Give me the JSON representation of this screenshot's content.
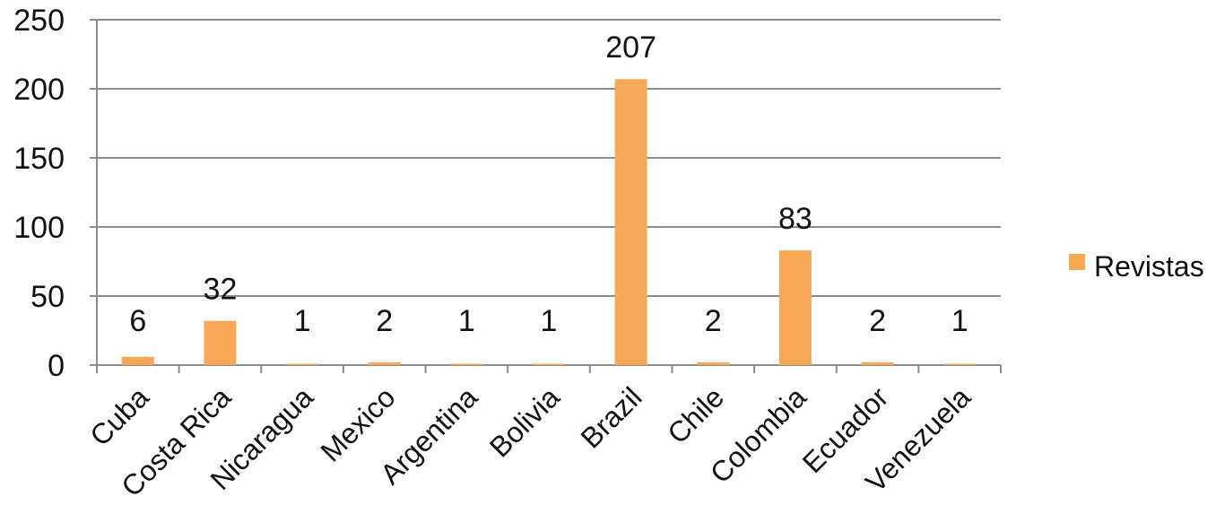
{
  "chart_data": {
    "type": "bar",
    "categories": [
      "Cuba",
      "Costa Rica",
      "Nicaragua",
      "Mexico",
      "Argentina",
      "Bolivia",
      "Brazil",
      "Chile",
      "Colombia",
      "Ecuador",
      "Venezuela"
    ],
    "series": [
      {
        "name": "Revistas",
        "values": [
          6,
          32,
          1,
          2,
          1,
          1,
          207,
          2,
          83,
          2,
          1
        ],
        "color": "#F6A857"
      }
    ],
    "data_labels": [
      "6",
      "32",
      "1",
      "2",
      "1",
      "1",
      "207",
      "2",
      "83",
      "2",
      "1"
    ],
    "y_ticks": [
      "0",
      "50",
      "100",
      "150",
      "200",
      "250"
    ],
    "ylim": [
      0,
      250
    ],
    "grid": true,
    "legend_position": "right",
    "gridline_color": "#8c8c8c"
  }
}
